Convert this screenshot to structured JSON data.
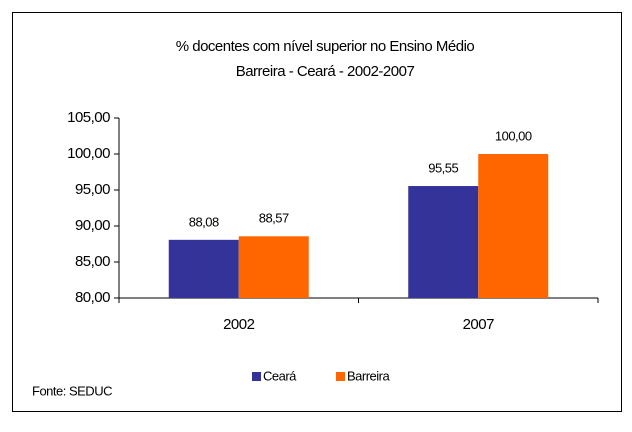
{
  "chart_data": {
    "type": "bar",
    "title": "% docentes com nível superior no Ensino Médio",
    "subtitle": "Barreira - Ceará - 2002-2007",
    "categories": [
      "2002",
      "2007"
    ],
    "series": [
      {
        "name": "Ceará",
        "color": "#333399",
        "values": [
          88.08,
          95.55
        ],
        "value_labels": [
          "88,08",
          "95,55"
        ]
      },
      {
        "name": "Barreira",
        "color": "#ff6600",
        "values": [
          88.57,
          100
        ],
        "value_labels": [
          "88,57",
          "100,00"
        ]
      }
    ],
    "ylim": [
      80,
      105
    ],
    "yticks": [
      {
        "value": 80,
        "label": "80,00"
      },
      {
        "value": 85,
        "label": "85,00"
      },
      {
        "value": 90,
        "label": "90,00"
      },
      {
        "value": 95,
        "label": "95,00"
      },
      {
        "value": 100,
        "label": "100,00"
      },
      {
        "value": 105,
        "label": "105,00"
      }
    ],
    "grid": false,
    "legend": "bottom",
    "source": "Fonte: SEDUC"
  }
}
